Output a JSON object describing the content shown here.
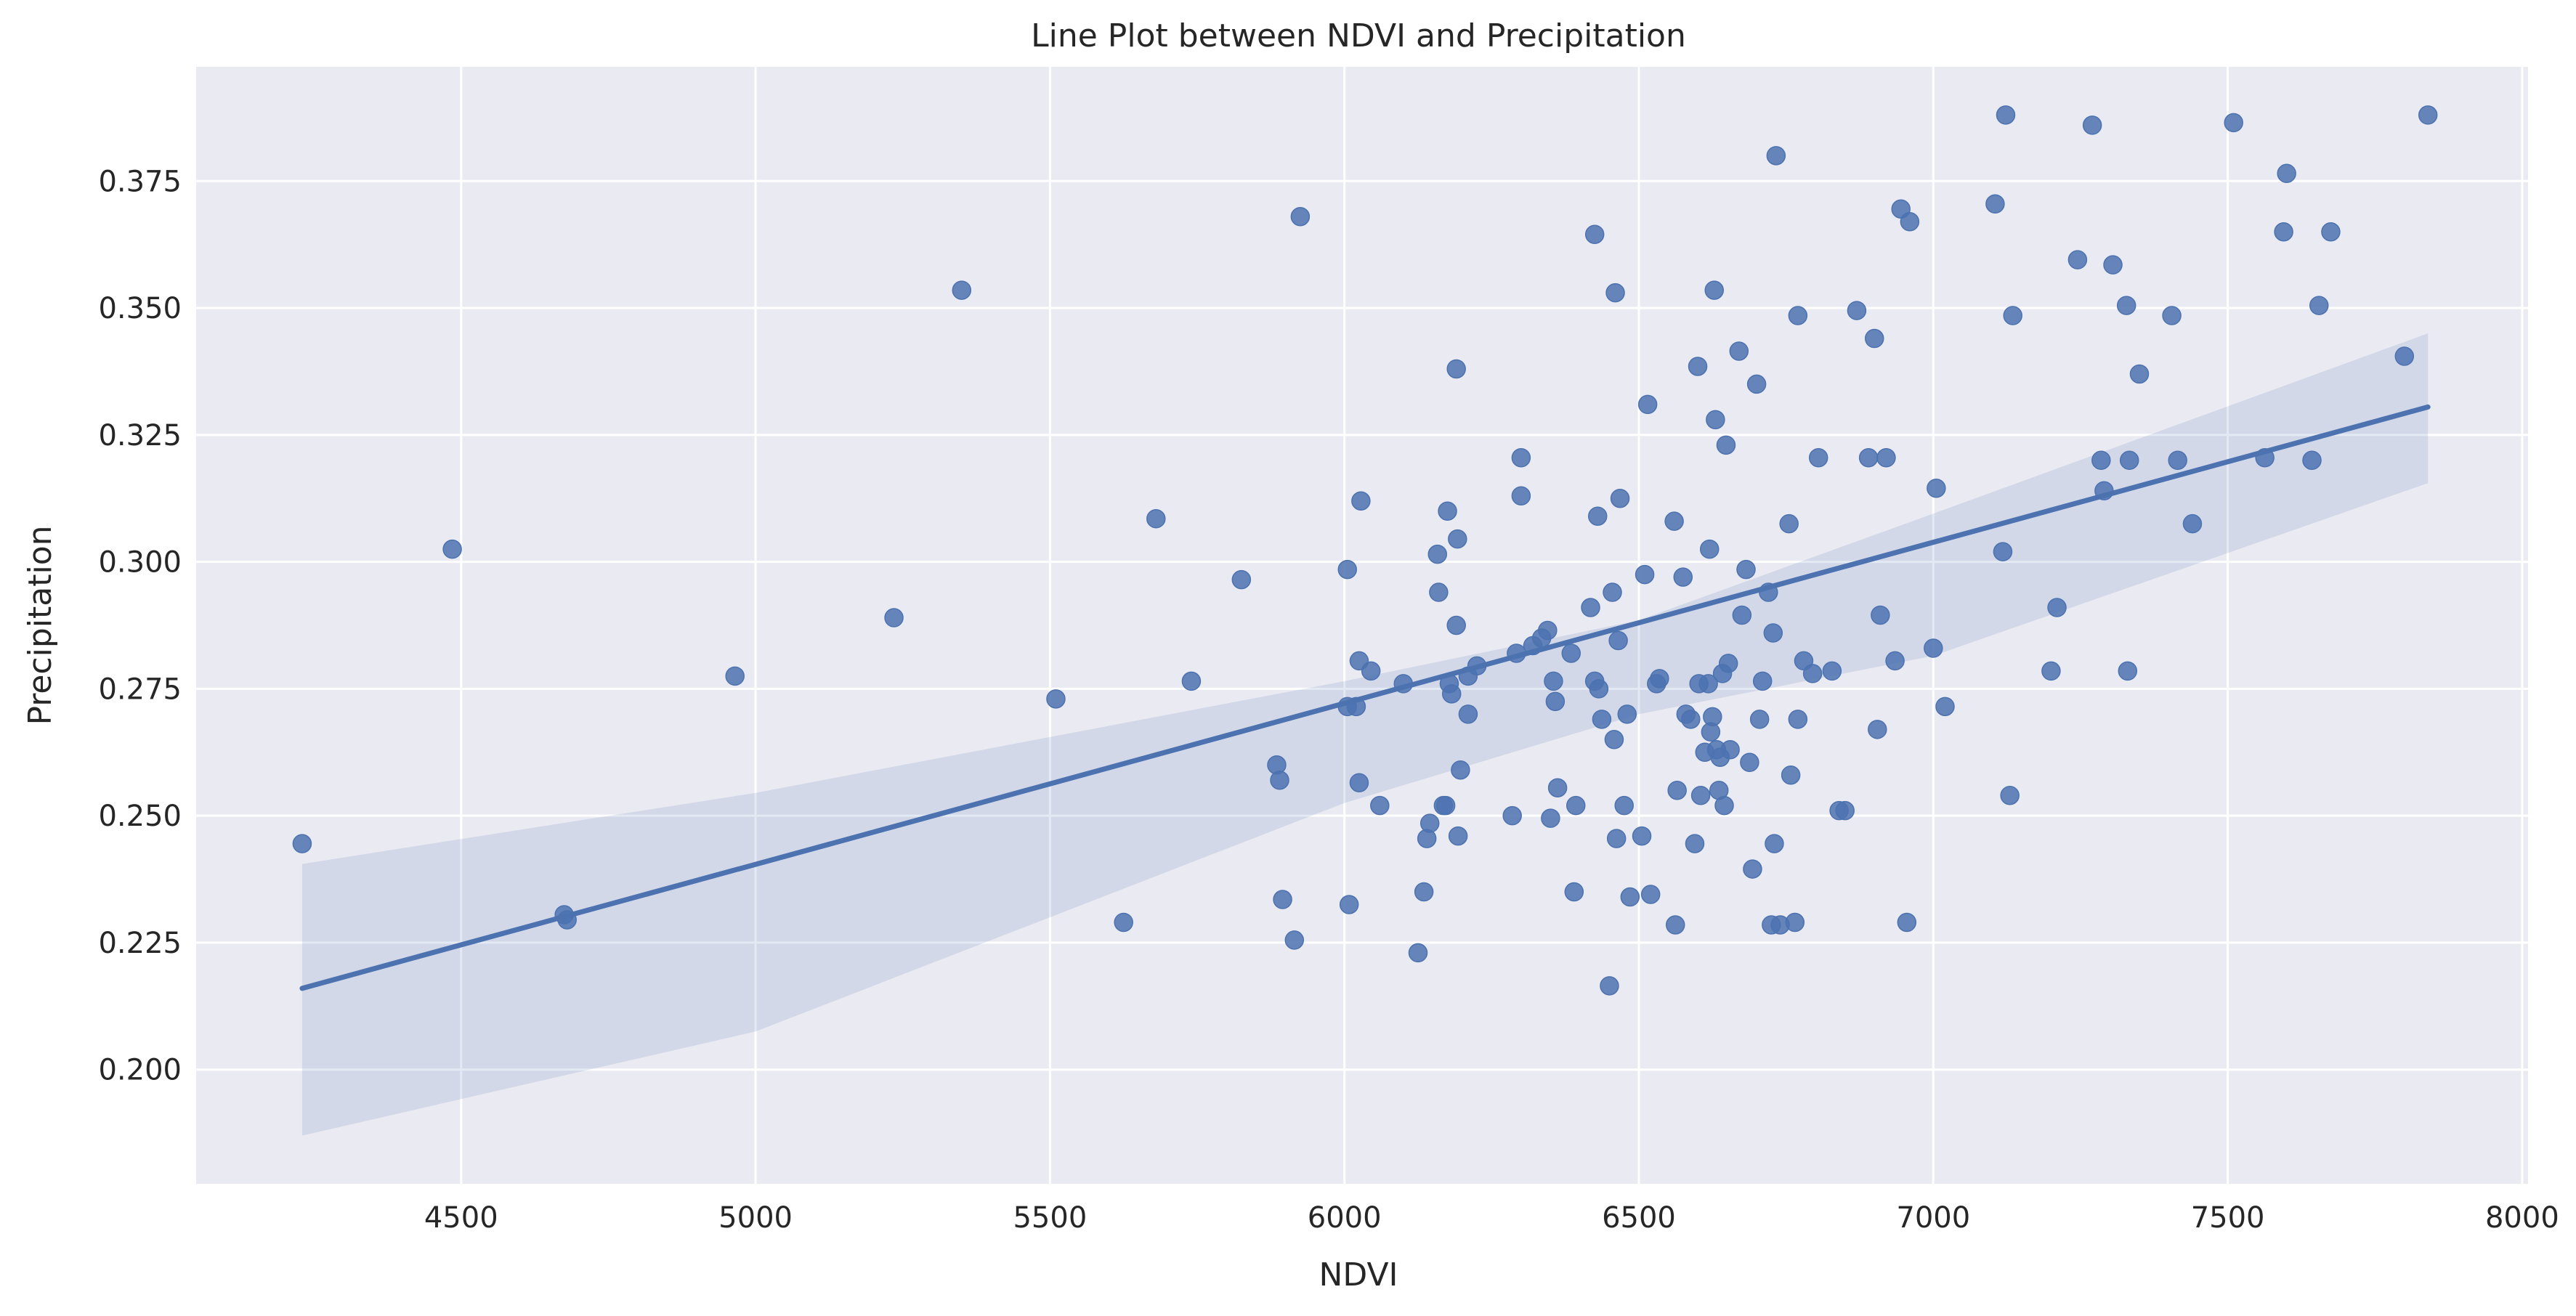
{
  "chart_data": {
    "type": "scatter",
    "title": "Line Plot between NDVI and Precipitation",
    "xlabel": "NDVI",
    "ylabel": "Precipitation",
    "xlim": [
      4050,
      8010
    ],
    "ylim": [
      0.1775,
      0.3975
    ],
    "x_ticks": [
      4500,
      5000,
      5500,
      6000,
      6500,
      7000,
      7500,
      8000
    ],
    "y_ticks": [
      0.2,
      0.225,
      0.25,
      0.275,
      0.3,
      0.325,
      0.35,
      0.375
    ],
    "x_tick_labels": [
      "4500",
      "5000",
      "5500",
      "6000",
      "6500",
      "7000",
      "7500",
      "8000"
    ],
    "y_tick_labels": [
      "0.200",
      "0.225",
      "0.250",
      "0.275",
      "0.300",
      "0.325",
      "0.350",
      "0.375"
    ],
    "grid": true,
    "colors": {
      "background": "#eaeaf2",
      "grid": "#ffffff",
      "series": "#4c72b0",
      "text": "#262626"
    },
    "regression": {
      "x": [
        4230,
        7840
      ],
      "y": [
        0.216,
        0.3305
      ],
      "ci_lower": [
        [
          4230,
          0.187
        ],
        [
          5000,
          0.2075
        ],
        [
          6000,
          0.2525
        ],
        [
          6500,
          0.27
        ],
        [
          7000,
          0.2815
        ],
        [
          7840,
          0.3155
        ]
      ],
      "ci_upper": [
        [
          4230,
          0.2405
        ],
        [
          5000,
          0.2545
        ],
        [
          6000,
          0.2765
        ],
        [
          6500,
          0.2885
        ],
        [
          7000,
          0.3095
        ],
        [
          7840,
          0.345
        ]
      ]
    },
    "series": [
      {
        "points": [
          [
            4230,
            0.2445
          ],
          [
            4485,
            0.3025
          ],
          [
            4675,
            0.2305
          ],
          [
            4680,
            0.2295
          ],
          [
            4965,
            0.2775
          ],
          [
            5235,
            0.289
          ],
          [
            5350,
            0.3535
          ],
          [
            5510,
            0.273
          ],
          [
            5625,
            0.229
          ],
          [
            5680,
            0.3085
          ],
          [
            5740,
            0.2765
          ],
          [
            5825,
            0.2965
          ],
          [
            5885,
            0.26
          ],
          [
            5890,
            0.257
          ],
          [
            5895,
            0.2335
          ],
          [
            5915,
            0.2255
          ],
          [
            5925,
            0.368
          ],
          [
            6005,
            0.2985
          ],
          [
            6005,
            0.2715
          ],
          [
            6008,
            0.2325
          ],
          [
            6020,
            0.2715
          ],
          [
            6025,
            0.2805
          ],
          [
            6025,
            0.2565
          ],
          [
            6028,
            0.312
          ],
          [
            6045,
            0.2785
          ],
          [
            6060,
            0.252
          ],
          [
            6100,
            0.276
          ],
          [
            6125,
            0.223
          ],
          [
            6135,
            0.235
          ],
          [
            6140,
            0.2455
          ],
          [
            6145,
            0.2485
          ],
          [
            6158,
            0.3015
          ],
          [
            6160,
            0.294
          ],
          [
            6168,
            0.252
          ],
          [
            6172,
            0.252
          ],
          [
            6175,
            0.31
          ],
          [
            6178,
            0.276
          ],
          [
            6182,
            0.274
          ],
          [
            6190,
            0.338
          ],
          [
            6190,
            0.2875
          ],
          [
            6192,
            0.3045
          ],
          [
            6193,
            0.246
          ],
          [
            6197,
            0.259
          ],
          [
            6210,
            0.2775
          ],
          [
            6210,
            0.27
          ],
          [
            6225,
            0.2795
          ],
          [
            6285,
            0.25
          ],
          [
            6292,
            0.282
          ],
          [
            6300,
            0.3205
          ],
          [
            6300,
            0.313
          ],
          [
            6320,
            0.2835
          ],
          [
            6335,
            0.285
          ],
          [
            6345,
            0.2865
          ],
          [
            6350,
            0.2495
          ],
          [
            6355,
            0.2765
          ],
          [
            6358,
            0.2725
          ],
          [
            6362,
            0.2555
          ],
          [
            6385,
            0.282
          ],
          [
            6390,
            0.235
          ],
          [
            6393,
            0.252
          ],
          [
            6418,
            0.291
          ],
          [
            6425,
            0.3645
          ],
          [
            6425,
            0.2765
          ],
          [
            6430,
            0.309
          ],
          [
            6432,
            0.275
          ],
          [
            6437,
            0.269
          ],
          [
            6450,
            0.2165
          ],
          [
            6455,
            0.294
          ],
          [
            6458,
            0.265
          ],
          [
            6460,
            0.353
          ],
          [
            6462,
            0.2455
          ],
          [
            6465,
            0.2845
          ],
          [
            6468,
            0.3125
          ],
          [
            6475,
            0.252
          ],
          [
            6480,
            0.27
          ],
          [
            6485,
            0.234
          ],
          [
            6505,
            0.246
          ],
          [
            6510,
            0.2975
          ],
          [
            6515,
            0.331
          ],
          [
            6520,
            0.2345
          ],
          [
            6530,
            0.276
          ],
          [
            6535,
            0.277
          ],
          [
            6560,
            0.308
          ],
          [
            6562,
            0.2285
          ],
          [
            6565,
            0.255
          ],
          [
            6575,
            0.297
          ],
          [
            6580,
            0.27
          ],
          [
            6588,
            0.269
          ],
          [
            6595,
            0.2445
          ],
          [
            6600,
            0.3385
          ],
          [
            6602,
            0.276
          ],
          [
            6605,
            0.254
          ],
          [
            6612,
            0.2625
          ],
          [
            6618,
            0.276
          ],
          [
            6620,
            0.3025
          ],
          [
            6622,
            0.2665
          ],
          [
            6625,
            0.2695
          ],
          [
            6628,
            0.3535
          ],
          [
            6630,
            0.328
          ],
          [
            6632,
            0.263
          ],
          [
            6636,
            0.255
          ],
          [
            6638,
            0.2615
          ],
          [
            6642,
            0.278
          ],
          [
            6645,
            0.252
          ],
          [
            6648,
            0.323
          ],
          [
            6652,
            0.28
          ],
          [
            6655,
            0.263
          ],
          [
            6670,
            0.3415
          ],
          [
            6675,
            0.2895
          ],
          [
            6682,
            0.2985
          ],
          [
            6688,
            0.2605
          ],
          [
            6693,
            0.2395
          ],
          [
            6700,
            0.335
          ],
          [
            6705,
            0.269
          ],
          [
            6710,
            0.2765
          ],
          [
            6720,
            0.294
          ],
          [
            6725,
            0.2285
          ],
          [
            6728,
            0.286
          ],
          [
            6730,
            0.2445
          ],
          [
            6733,
            0.38
          ],
          [
            6740,
            0.2285
          ],
          [
            6755,
            0.3075
          ],
          [
            6758,
            0.258
          ],
          [
            6765,
            0.229
          ],
          [
            6770,
            0.269
          ],
          [
            6770,
            0.3485
          ],
          [
            6780,
            0.2805
          ],
          [
            6795,
            0.278
          ],
          [
            6805,
            0.3205
          ],
          [
            6828,
            0.2785
          ],
          [
            6840,
            0.251
          ],
          [
            6850,
            0.251
          ],
          [
            6870,
            0.3495
          ],
          [
            6890,
            0.3205
          ],
          [
            6900,
            0.344
          ],
          [
            6905,
            0.267
          ],
          [
            6910,
            0.2895
          ],
          [
            6920,
            0.3205
          ],
          [
            6935,
            0.2805
          ],
          [
            6945,
            0.3695
          ],
          [
            6955,
            0.229
          ],
          [
            6960,
            0.367
          ],
          [
            7000,
            0.283
          ],
          [
            7005,
            0.3145
          ],
          [
            7020,
            0.2715
          ],
          [
            7105,
            0.3705
          ],
          [
            7118,
            0.302
          ],
          [
            7123,
            0.388
          ],
          [
            7130,
            0.254
          ],
          [
            7135,
            0.3485
          ],
          [
            7200,
            0.2785
          ],
          [
            7210,
            0.291
          ],
          [
            7245,
            0.3595
          ],
          [
            7270,
            0.386
          ],
          [
            7285,
            0.32
          ],
          [
            7290,
            0.314
          ],
          [
            7305,
            0.3585
          ],
          [
            7328,
            0.3505
          ],
          [
            7330,
            0.2785
          ],
          [
            7333,
            0.32
          ],
          [
            7350,
            0.337
          ],
          [
            7405,
            0.3485
          ],
          [
            7415,
            0.32
          ],
          [
            7440,
            0.3075
          ],
          [
            7510,
            0.3865
          ],
          [
            7563,
            0.3205
          ],
          [
            7595,
            0.365
          ],
          [
            7600,
            0.3765
          ],
          [
            7643,
            0.32
          ],
          [
            7655,
            0.3505
          ],
          [
            7675,
            0.365
          ],
          [
            7800,
            0.3405
          ],
          [
            7840,
            0.388
          ]
        ]
      }
    ]
  }
}
